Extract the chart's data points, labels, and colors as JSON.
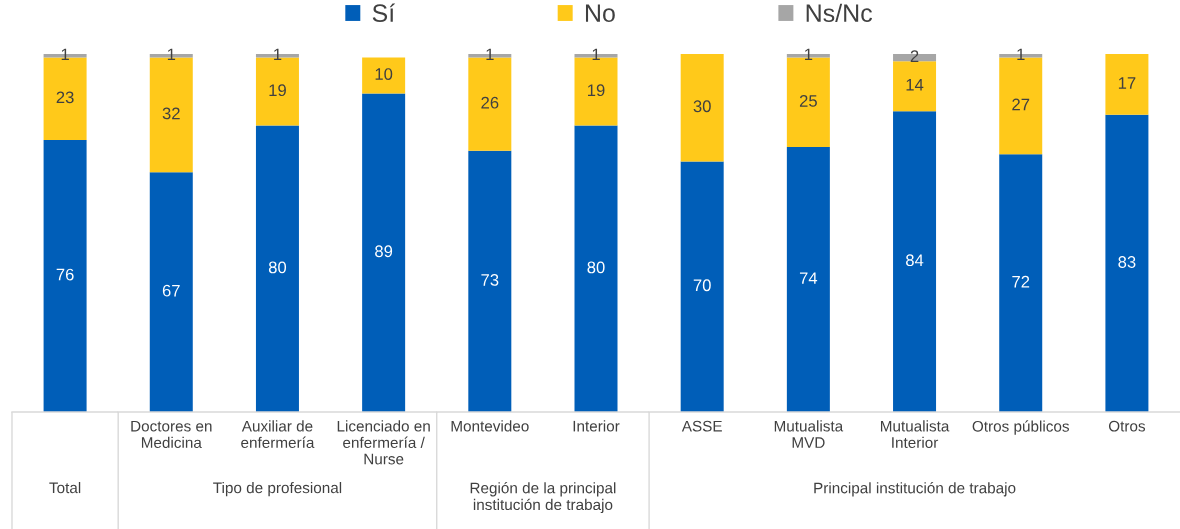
{
  "chart_data": [
    {
      "type": "bar",
      "stacked": true,
      "categories": [
        null
      ],
      "xlabel": "Total",
      "series": [
        {
          "name": "Sí",
          "color": "#005eb8",
          "values": [
            76
          ]
        },
        {
          "name": "No",
          "color": "#ffc91a",
          "values": [
            23
          ]
        },
        {
          "name": "Ns/Nc",
          "color": "#a6a6a6",
          "values": [
            1
          ]
        }
      ],
      "ylim": [
        0,
        100
      ],
      "tick_labels": "x",
      "data_labels": true,
      "legend": "top"
    },
    {
      "type": "bar",
      "stacked": true,
      "categories": [
        "Doctores en\nMedicina",
        "Auxiliar de\nenfermería",
        "Licenciado en\nenfermería /\nNurse"
      ],
      "xlabel": "Tipo de profesional",
      "series": [
        {
          "color": "#005eb8",
          "values": [
            67,
            80,
            89
          ]
        },
        {
          "color": "#ffc91a",
          "values": [
            32,
            19,
            10
          ]
        },
        {
          "color": "#a6a6a6",
          "values": [
            1,
            1,
            null
          ]
        }
      ],
      "ylim": [
        0,
        100
      ],
      "tick_labels": "x",
      "data_labels": true
    },
    {
      "type": "bar",
      "stacked": true,
      "categories": [
        "Montevideo",
        "Interior"
      ],
      "xlabel": "Región de la principal\ninstitución de trabajo",
      "series": [
        {
          "color": "#005eb8",
          "values": [
            73,
            80
          ]
        },
        {
          "color": "#ffc91a",
          "values": [
            26,
            19
          ]
        },
        {
          "color": "#a6a6a6",
          "values": [
            1,
            1
          ]
        }
      ],
      "ylim": [
        0,
        100
      ],
      "tick_labels": "x",
      "data_labels": true
    },
    {
      "type": "bar",
      "stacked": true,
      "categories": [
        "ASSE",
        "Mutualista\nMVD",
        "Mutualista\nInterior",
        "Otros públicos",
        "Otros"
      ],
      "xlabel": "Principal institución de trabajo",
      "series": [
        {
          "color": "#005eb8",
          "values": [
            70,
            74,
            84,
            72,
            83
          ]
        },
        {
          "color": "#ffc91a",
          "values": [
            30,
            25,
            14,
            27,
            17
          ]
        },
        {
          "color": "#a6a6a6",
          "values": [
            null,
            1,
            2,
            1,
            null
          ]
        }
      ],
      "ylim": [
        0,
        100
      ],
      "tick_labels": "x",
      "data_labels": true
    }
  ]
}
